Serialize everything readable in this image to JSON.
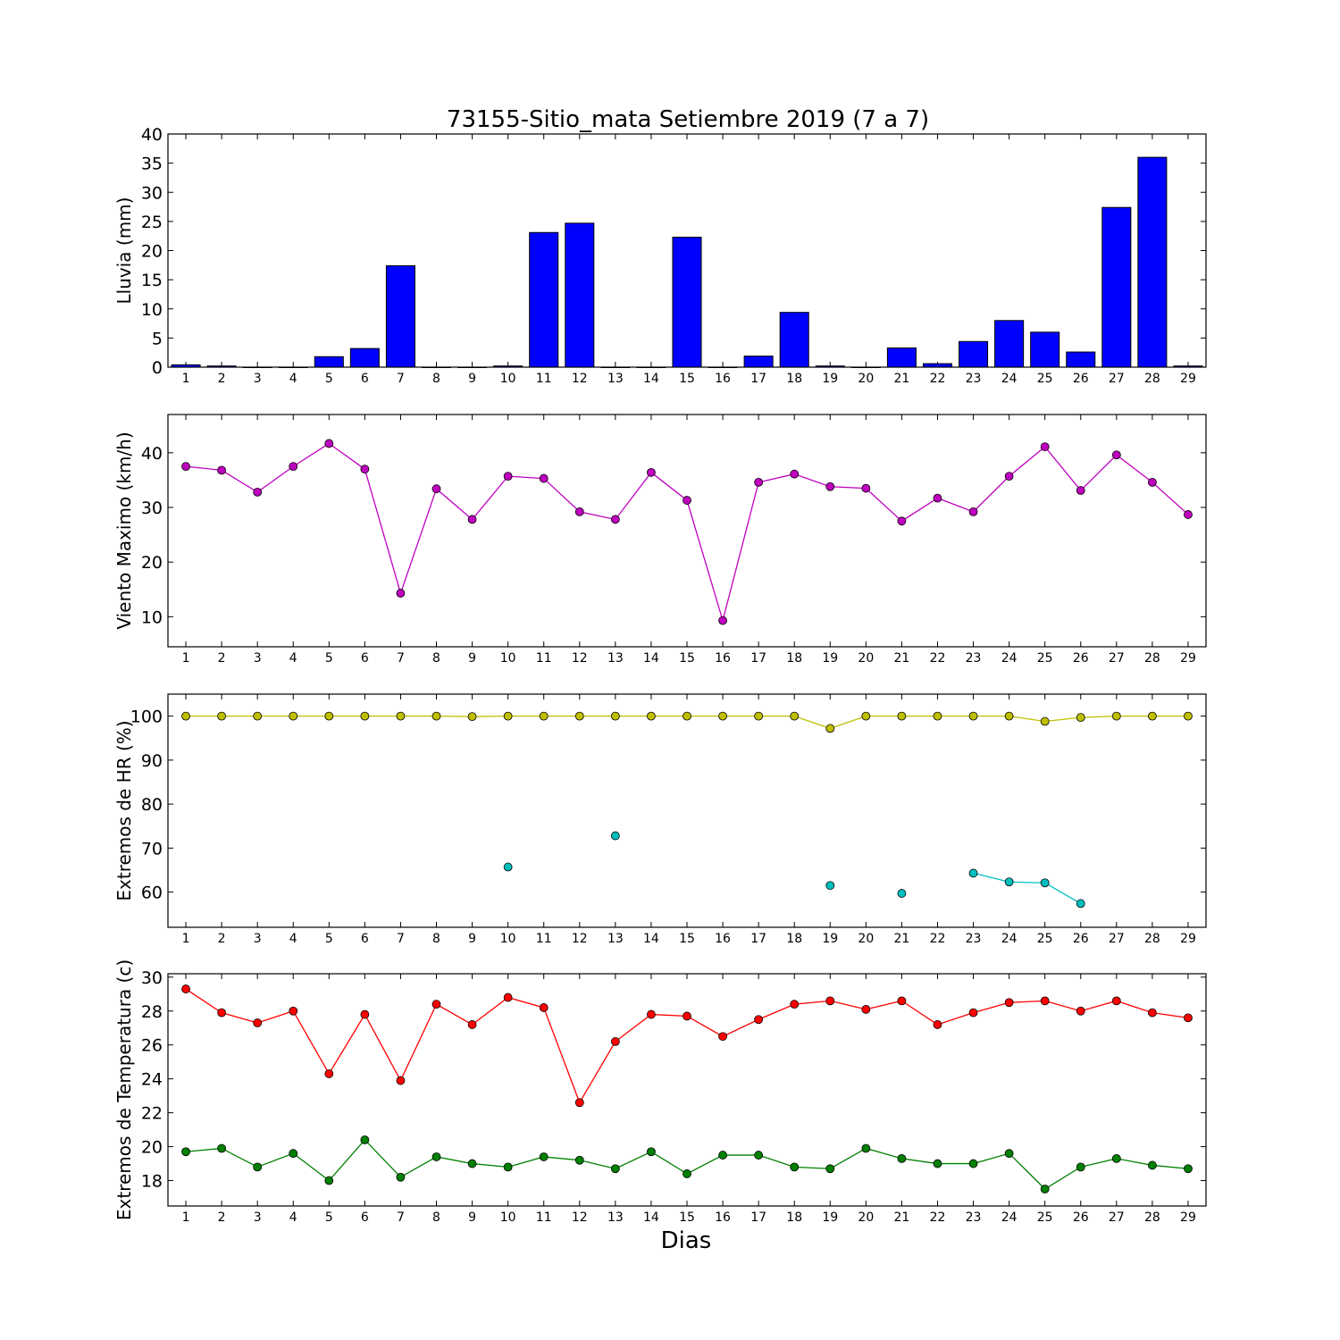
{
  "title": "73155-Sitio_mata Setiembre 2019  (7 a 7)",
  "xlabel": "Dias",
  "chart_data": [
    {
      "type": "bar",
      "ylabel": "Lluvia (mm)",
      "ylim": [
        0,
        40
      ],
      "yticks": [
        0,
        5,
        10,
        15,
        20,
        25,
        30,
        35,
        40
      ],
      "x": [
        1,
        2,
        3,
        4,
        5,
        6,
        7,
        8,
        9,
        10,
        11,
        12,
        13,
        14,
        15,
        16,
        17,
        18,
        19,
        20,
        21,
        22,
        23,
        24,
        25,
        26,
        27,
        28,
        29
      ],
      "series": [
        {
          "color": "#0000ff",
          "values": [
            0.4,
            0.2,
            0,
            0,
            1.8,
            3.2,
            17.4,
            0,
            0,
            0.2,
            23.1,
            24.7,
            0,
            0,
            22.3,
            0,
            1.9,
            9.4,
            0.2,
            0,
            3.3,
            0.6,
            4.4,
            8,
            6,
            2.6,
            27.4,
            36,
            0.2
          ]
        }
      ]
    },
    {
      "type": "line",
      "ylabel": "Viento Maximo (km/h)",
      "ylim": [
        4.5,
        47
      ],
      "yticks": [
        10,
        20,
        30,
        40
      ],
      "x": [
        1,
        2,
        3,
        4,
        5,
        6,
        7,
        8,
        9,
        10,
        11,
        12,
        13,
        14,
        15,
        16,
        17,
        18,
        19,
        20,
        21,
        22,
        23,
        24,
        25,
        26,
        27,
        28,
        29
      ],
      "series": [
        {
          "color": "#bf00bf",
          "values": [
            37.5,
            36.8,
            32.8,
            37.5,
            41.7,
            37,
            14.3,
            33.4,
            27.8,
            35.7,
            35.3,
            29.2,
            27.8,
            36.4,
            31.3,
            9.3,
            34.6,
            36.1,
            33.8,
            33.5,
            27.5,
            31.7,
            29.2,
            35.7,
            41.1,
            33.1,
            39.6,
            34.6,
            28.7
          ]
        }
      ]
    },
    {
      "type": "line",
      "ylabel": "Extremos de HR (%)",
      "ylim": [
        52,
        105
      ],
      "yticks": [
        60,
        70,
        80,
        90,
        100
      ],
      "x": [
        1,
        2,
        3,
        4,
        5,
        6,
        7,
        8,
        9,
        10,
        11,
        12,
        13,
        14,
        15,
        16,
        17,
        18,
        19,
        20,
        21,
        22,
        23,
        24,
        25,
        26,
        27,
        28,
        29
      ],
      "series": [
        {
          "color": "#bfbf00",
          "values": [
            100,
            100,
            100,
            100,
            100,
            100,
            100,
            100,
            99.9,
            100,
            100,
            100,
            100,
            100,
            100,
            100,
            100,
            100,
            97.2,
            100,
            100,
            100,
            100,
            100,
            98.8,
            99.7,
            100,
            100,
            100
          ]
        },
        {
          "color": "#00bfbf",
          "values": [
            null,
            null,
            null,
            null,
            null,
            null,
            null,
            null,
            null,
            65.7,
            null,
            null,
            72.8,
            null,
            null,
            null,
            null,
            null,
            61.5,
            null,
            59.7,
            null,
            64.3,
            62.3,
            62.1,
            57.4,
            null,
            null,
            null
          ]
        }
      ]
    },
    {
      "type": "line",
      "ylabel": "Extremos de Temperatura (c)",
      "ylim": [
        16.5,
        30.2
      ],
      "yticks": [
        18,
        20,
        22,
        24,
        26,
        28,
        30
      ],
      "x": [
        1,
        2,
        3,
        4,
        5,
        6,
        7,
        8,
        9,
        10,
        11,
        12,
        13,
        14,
        15,
        16,
        17,
        18,
        19,
        20,
        21,
        22,
        23,
        24,
        25,
        26,
        27,
        28,
        29
      ],
      "series": [
        {
          "color": "#ff0000",
          "values": [
            29.3,
            27.9,
            27.3,
            28,
            24.3,
            27.8,
            23.9,
            28.4,
            27.2,
            28.8,
            28.2,
            22.6,
            26.2,
            27.8,
            27.7,
            26.5,
            27.5,
            28.4,
            28.6,
            28.1,
            28.6,
            27.2,
            27.9,
            28.5,
            28.6,
            28,
            28.6,
            27.9,
            27.6
          ]
        },
        {
          "color": "#008000",
          "values": [
            19.7,
            19.9,
            18.8,
            19.6,
            18,
            20.4,
            18.2,
            19.4,
            19,
            18.8,
            19.4,
            19.2,
            18.7,
            19.7,
            18.4,
            19.5,
            19.5,
            18.8,
            18.7,
            19.9,
            19.3,
            19,
            19,
            19.6,
            17.5,
            18.8,
            19.3,
            18.9,
            18.7
          ]
        }
      ]
    }
  ]
}
